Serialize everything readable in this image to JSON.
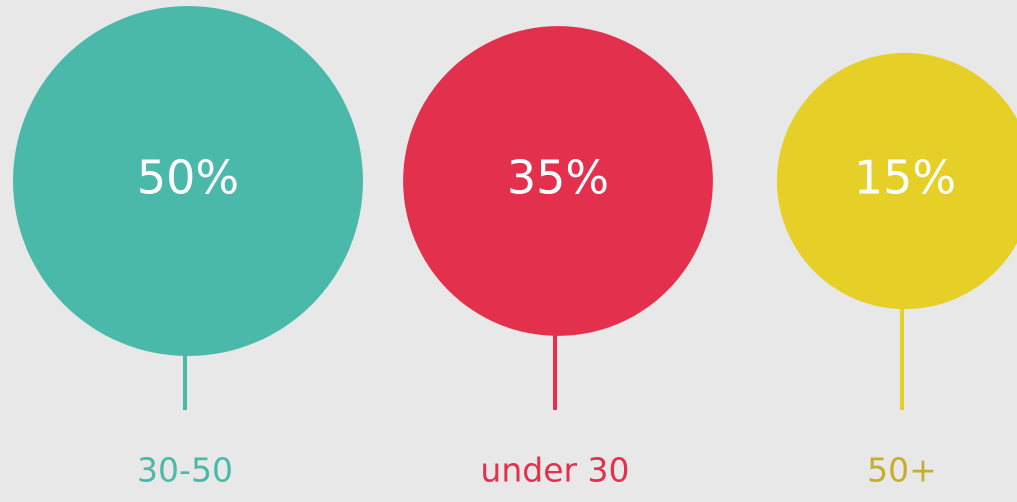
{
  "chart_data": {
    "type": "bubble",
    "categories": [
      "30-50",
      "under 30",
      "50+"
    ],
    "values": [
      50,
      35,
      15
    ],
    "value_labels": [
      "50%",
      "35%",
      "15%"
    ],
    "colors": [
      "#4ab9a9",
      "#e2304d",
      "#e6cf26"
    ],
    "label_colors": [
      "#4ab9a9",
      "#e2304d",
      "#c6ae2c"
    ]
  }
}
